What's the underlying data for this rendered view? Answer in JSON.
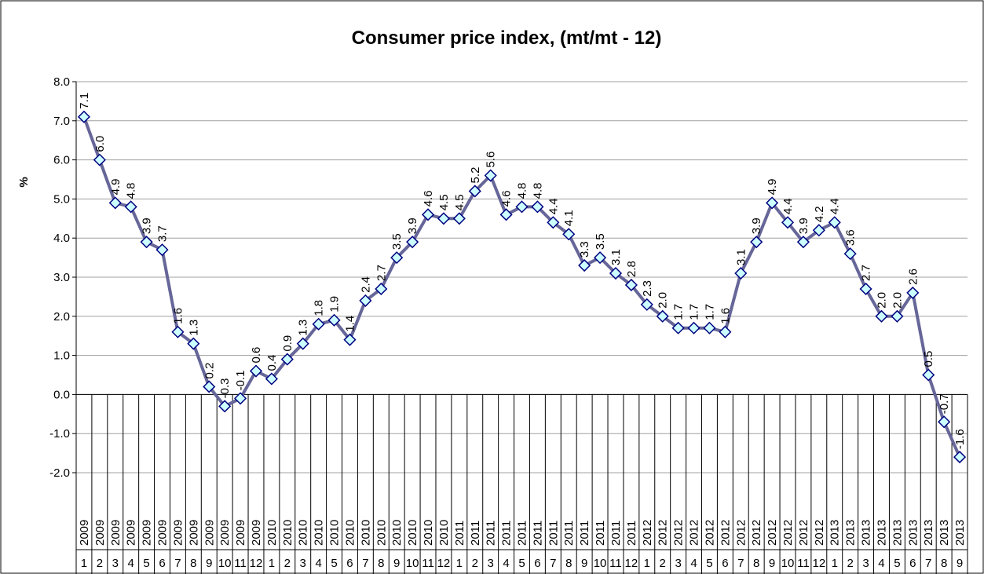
{
  "chart_data": {
    "type": "line",
    "title": "Consumer price index, (mt/mt - 12)",
    "y_label": "%",
    "categories": [
      [
        "2009",
        "1"
      ],
      [
        "2009",
        "2"
      ],
      [
        "2009",
        "3"
      ],
      [
        "2009",
        "4"
      ],
      [
        "2009",
        "5"
      ],
      [
        "2009",
        "6"
      ],
      [
        "2009",
        "7"
      ],
      [
        "2009",
        "8"
      ],
      [
        "2009",
        "9"
      ],
      [
        "2009",
        "10"
      ],
      [
        "2009",
        "11"
      ],
      [
        "2009",
        "12"
      ],
      [
        "2010",
        "1"
      ],
      [
        "2010",
        "2"
      ],
      [
        "2010",
        "3"
      ],
      [
        "2010",
        "4"
      ],
      [
        "2010",
        "5"
      ],
      [
        "2010",
        "6"
      ],
      [
        "2010",
        "7"
      ],
      [
        "2010",
        "8"
      ],
      [
        "2010",
        "9"
      ],
      [
        "2010",
        "10"
      ],
      [
        "2010",
        "11"
      ],
      [
        "2010",
        "12"
      ],
      [
        "2011",
        "1"
      ],
      [
        "2011",
        "2"
      ],
      [
        "2011",
        "3"
      ],
      [
        "2011",
        "4"
      ],
      [
        "2011",
        "5"
      ],
      [
        "2011",
        "6"
      ],
      [
        "2011",
        "7"
      ],
      [
        "2011",
        "8"
      ],
      [
        "2011",
        "9"
      ],
      [
        "2011",
        "10"
      ],
      [
        "2011",
        "11"
      ],
      [
        "2011",
        "12"
      ],
      [
        "2012",
        "1"
      ],
      [
        "2012",
        "2"
      ],
      [
        "2012",
        "3"
      ],
      [
        "2012",
        "4"
      ],
      [
        "2012",
        "5"
      ],
      [
        "2012",
        "6"
      ],
      [
        "2012",
        "7"
      ],
      [
        "2012",
        "8"
      ],
      [
        "2012",
        "9"
      ],
      [
        "2012",
        "10"
      ],
      [
        "2012",
        "11"
      ],
      [
        "2012",
        "12"
      ],
      [
        "2013",
        "1"
      ],
      [
        "2013",
        "2"
      ],
      [
        "2013",
        "3"
      ],
      [
        "2013",
        "4"
      ],
      [
        "2013",
        "5"
      ],
      [
        "2013",
        "6"
      ],
      [
        "2013",
        "7"
      ],
      [
        "2013",
        "8"
      ],
      [
        "2013",
        "9"
      ]
    ],
    "values": [
      7.1,
      6.0,
      4.9,
      4.8,
      3.9,
      3.7,
      1.6,
      1.3,
      0.2,
      -0.3,
      -0.1,
      0.6,
      0.4,
      0.9,
      1.3,
      1.8,
      1.9,
      1.4,
      2.4,
      2.7,
      3.5,
      3.9,
      4.6,
      4.5,
      4.5,
      5.2,
      5.6,
      4.6,
      4.8,
      4.8,
      4.4,
      4.1,
      3.3,
      3.5,
      3.1,
      2.8,
      2.3,
      2.0,
      1.7,
      1.7,
      1.7,
      1.6,
      3.1,
      3.9,
      4.9,
      4.4,
      3.9,
      4.2,
      4.4,
      3.6,
      2.7,
      2.0,
      2.0,
      2.6,
      0.5,
      -0.7,
      -1.6
    ],
    "value_labels": [
      "7.1",
      "6.0",
      "4.9",
      "4.8",
      "3.9",
      "3.7",
      "1.6",
      "1.3",
      "0.2",
      "-0.3",
      "-0.1",
      "0.6",
      "0.4",
      "0.9",
      "1.3",
      "1.8",
      "1.9",
      "1.4",
      "2.4",
      "2.7",
      "3.5",
      "3.9",
      "4.6",
      "4.5",
      "4.5",
      "5.2",
      "5.6",
      "4.6",
      "4.8",
      "4.8",
      "4.4",
      "4.1",
      "3.3",
      "3.5",
      "3.1",
      "2.8",
      "2.3",
      "2.0",
      "1.7",
      "1.7",
      "1.7",
      "1.6",
      "3.1",
      "3.9",
      "4.9",
      "4.4",
      "3.9",
      "4.2",
      "4.4",
      "3.6",
      "2.7",
      "2.0",
      "2.0",
      "2.6",
      "0.5",
      "-0.7",
      "-1.6"
    ],
    "line_color": "#666699",
    "marker_fill": "#ccffff",
    "marker_stroke": "#000080",
    "ylim": [
      -2,
      8
    ],
    "yticks": [
      {
        "value": -2,
        "label": "-2.0"
      },
      {
        "value": -1,
        "label": "-1.0"
      },
      {
        "value": 0,
        "label": "0.0"
      },
      {
        "value": 1,
        "label": "1.0"
      },
      {
        "value": 2,
        "label": "2.0"
      },
      {
        "value": 3,
        "label": "3.0"
      },
      {
        "value": 4,
        "label": "4.0"
      },
      {
        "value": 5,
        "label": "5.0"
      },
      {
        "value": 6,
        "label": "6.0"
      },
      {
        "value": 7,
        "label": "7.0"
      },
      {
        "value": 8,
        "label": "8.0"
      }
    ],
    "grid": true
  }
}
